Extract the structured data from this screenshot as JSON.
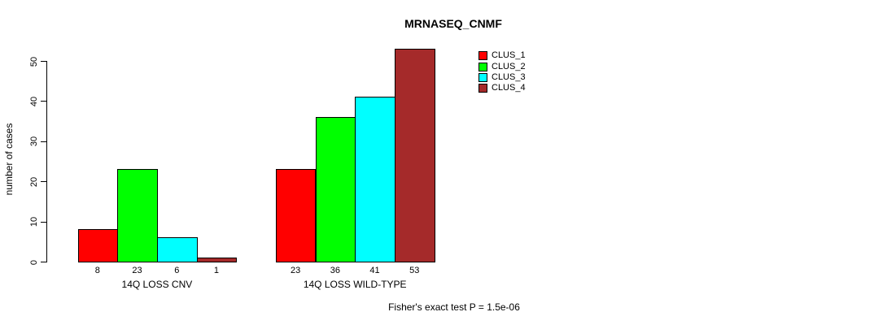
{
  "chart_data": {
    "type": "bar",
    "title": "MRNASEQ_CNMF",
    "ylabel": "number of cases",
    "ylim": [
      0,
      50
    ],
    "yticks": [
      0,
      10,
      20,
      30,
      40,
      50
    ],
    "grid": false,
    "legend_position": "top-right",
    "show_bar_values": true,
    "categories": [
      "14Q LOSS CNV",
      "14Q LOSS WILD-TYPE"
    ],
    "series": [
      {
        "name": "CLUS_1",
        "color": "#FF0000",
        "values": [
          8,
          23
        ]
      },
      {
        "name": "CLUS_2",
        "color": "#00FF00",
        "values": [
          23,
          36
        ]
      },
      {
        "name": "CLUS_3",
        "color": "#00FFFF",
        "values": [
          6,
          41
        ]
      },
      {
        "name": "CLUS_4",
        "color": "#A52A2A",
        "values": [
          1,
          53
        ]
      }
    ],
    "annotation": "Fisher's exact test P = 1.5e-06",
    "colors": {
      "bar_border": "#000000",
      "background": "#FFFFFF",
      "text": "#000000"
    }
  }
}
